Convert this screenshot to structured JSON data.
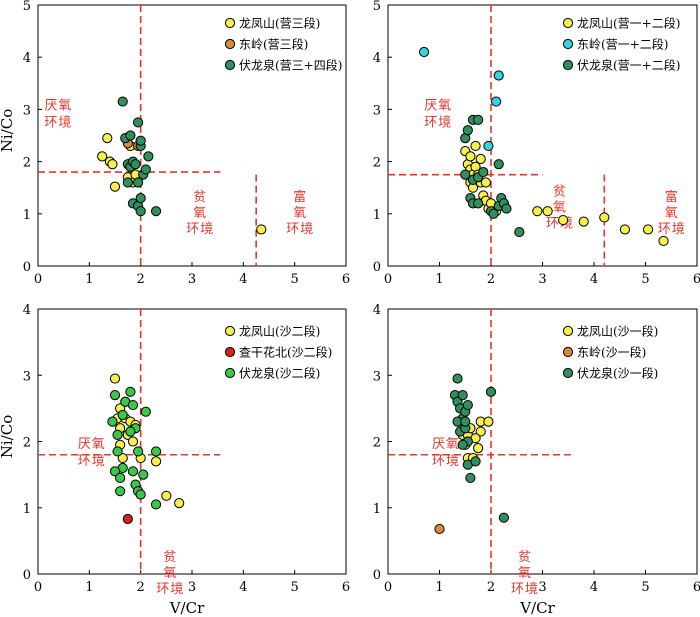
{
  "colors": {
    "longfengshan": "#f7ef4b",
    "dongling": "#d98a3a",
    "fulongquan": "#2f8f5e",
    "fulongquan_light": "#3cc64a",
    "dongling_cyan": "#34d3e0",
    "chaganhuabei": "#d0241c",
    "threshold": "#e8342a"
  },
  "chart_data": [
    {
      "type": "scatter",
      "xlabel": "",
      "ylabel": "Ni/Co",
      "xlim": [
        0,
        6
      ],
      "ylim": [
        0,
        5
      ],
      "xticks": [
        "0",
        "1",
        "2",
        "3",
        "4",
        "5",
        "6"
      ],
      "yticks": [
        "0",
        "1",
        "2",
        "3",
        "4",
        "5"
      ],
      "thresholds": {
        "vlines": [
          2,
          4.25
        ],
        "hline": 1.8
      },
      "zones": [
        {
          "text": [
            "厌",
            "氧",
            "环",
            "境"
          ]
        },
        {
          "text": [
            "贫",
            "氧",
            "环",
            "境"
          ]
        },
        {
          "text": [
            "富",
            "氧",
            "环",
            "境"
          ]
        }
      ],
      "series": [
        {
          "name": "龙凤山(营三段)",
          "color_key": "longfengshan",
          "points": [
            [
              1.25,
              2.1
            ],
            [
              1.35,
              2.45
            ],
            [
              1.4,
              2.0
            ],
            [
              1.45,
              1.95
            ],
            [
              1.5,
              1.52
            ],
            [
              1.75,
              1.7
            ],
            [
              1.85,
              1.6
            ],
            [
              1.8,
              2.3
            ],
            [
              1.9,
              1.75
            ],
            [
              4.35,
              0.7
            ]
          ]
        },
        {
          "name": "东岭(营三段)",
          "color_key": "dongling",
          "points": [
            [
              1.75,
              2.35
            ],
            [
              1.95,
              2.3
            ]
          ]
        },
        {
          "name": "伏龙泉(营三+四段)",
          "color_key": "fulongquan",
          "points": [
            [
              1.65,
              3.15
            ],
            [
              1.7,
              2.45
            ],
            [
              1.8,
              2.5
            ],
            [
              1.75,
              1.95
            ],
            [
              1.8,
              1.9
            ],
            [
              1.85,
              2.0
            ],
            [
              1.9,
              1.95
            ],
            [
              1.95,
              2.75
            ],
            [
              2.0,
              2.3
            ],
            [
              1.95,
              1.6
            ],
            [
              1.85,
              1.2
            ],
            [
              1.95,
              1.15
            ],
            [
              2.0,
              1.05
            ],
            [
              1.75,
              1.6
            ],
            [
              2.05,
              1.75
            ],
            [
              2.0,
              2.4
            ],
            [
              2.15,
              2.1
            ],
            [
              2.1,
              1.85
            ],
            [
              2.0,
              1.3
            ],
            [
              2.3,
              1.05
            ]
          ]
        }
      ]
    },
    {
      "type": "scatter",
      "xlabel": "",
      "ylabel": "",
      "xlim": [
        0,
        6
      ],
      "ylim": [
        0,
        5
      ],
      "xticks": [
        "0",
        "1",
        "2",
        "3",
        "4",
        "5",
        "6"
      ],
      "yticks": [
        "0",
        "1",
        "2",
        "3",
        "4",
        "5"
      ],
      "thresholds": {
        "vlines": [
          2,
          4.2
        ],
        "hline": 1.75
      },
      "zones": [
        {
          "text": [
            "厌",
            "氧",
            "环",
            "境"
          ]
        },
        {
          "text": [
            "贫",
            "氧",
            "环",
            "境"
          ]
        },
        {
          "text": [
            "富",
            "氧",
            "环",
            "境"
          ]
        }
      ],
      "series": [
        {
          "name": "龙凤山(营一+二段)",
          "color_key": "longfengshan",
          "points": [
            [
              1.5,
              2.2
            ],
            [
              1.55,
              1.95
            ],
            [
              1.6,
              2.1
            ],
            [
              1.6,
              1.85
            ],
            [
              1.65,
              1.75
            ],
            [
              1.6,
              1.6
            ],
            [
              1.65,
              1.5
            ],
            [
              1.7,
              2.3
            ],
            [
              1.7,
              1.9
            ],
            [
              1.75,
              1.75
            ],
            [
              1.8,
              2.05
            ],
            [
              1.8,
              1.6
            ],
            [
              1.85,
              1.35
            ],
            [
              1.9,
              1.6
            ],
            [
              1.9,
              1.25
            ],
            [
              1.95,
              1.1
            ],
            [
              2.0,
              1.2
            ],
            [
              2.1,
              1.05
            ],
            [
              2.9,
              1.05
            ],
            [
              3.1,
              1.05
            ],
            [
              3.4,
              0.88
            ],
            [
              3.8,
              0.85
            ],
            [
              4.2,
              0.93
            ],
            [
              4.6,
              0.7
            ],
            [
              5.05,
              0.7
            ],
            [
              5.35,
              0.48
            ]
          ]
        },
        {
          "name": "东岭(营一+二段)",
          "color_key": "dongling_cyan",
          "points": [
            [
              0.7,
              4.1
            ],
            [
              2.15,
              3.65
            ],
            [
              2.1,
              3.15
            ],
            [
              1.95,
              2.3
            ]
          ]
        },
        {
          "name": "伏龙泉(营一+二段)",
          "color_key": "fulongquan",
          "points": [
            [
              1.5,
              2.45
            ],
            [
              1.55,
              2.6
            ],
            [
              1.65,
              2.8
            ],
            [
              1.75,
              2.8
            ],
            [
              1.6,
              1.3
            ],
            [
              1.65,
              1.2
            ],
            [
              1.75,
              1.2
            ],
            [
              1.5,
              1.75
            ],
            [
              1.65,
              1.65
            ],
            [
              1.75,
              1.7
            ],
            [
              1.85,
              1.8
            ],
            [
              2.0,
              1.05
            ],
            [
              2.05,
              1.0
            ],
            [
              2.15,
              1.15
            ],
            [
              2.2,
              1.3
            ],
            [
              2.25,
              1.2
            ],
            [
              2.3,
              1.1
            ],
            [
              2.55,
              0.65
            ],
            [
              2.15,
              1.95
            ]
          ]
        }
      ]
    },
    {
      "type": "scatter",
      "xlabel": "V/Cr",
      "ylabel": "Ni/Co",
      "xlim": [
        0,
        6
      ],
      "ylim": [
        0,
        4
      ],
      "xticks": [
        "0",
        "1",
        "2",
        "3",
        "4",
        "5",
        "6"
      ],
      "yticks": [
        "0",
        "1",
        "2",
        "3",
        "4"
      ],
      "thresholds": {
        "vlines": [
          2
        ],
        "hline": 1.8
      },
      "zones": [
        {
          "text": [
            "厌",
            "氧",
            "环",
            "境"
          ]
        },
        {
          "text": [
            "贫",
            "氧",
            "环",
            "境"
          ]
        }
      ],
      "series": [
        {
          "name": "龙凤山(沙二段)",
          "color_key": "longfengshan",
          "points": [
            [
              1.5,
              2.95
            ],
            [
              1.55,
              2.35
            ],
            [
              1.6,
              2.2
            ],
            [
              1.6,
              1.95
            ],
            [
              1.65,
              1.75
            ],
            [
              1.7,
              2.35
            ],
            [
              1.75,
              2.1
            ],
            [
              1.8,
              2.3
            ],
            [
              1.85,
              2.0
            ],
            [
              1.9,
              2.25
            ],
            [
              2.0,
              1.75
            ],
            [
              2.3,
              1.7
            ],
            [
              2.5,
              1.18
            ],
            [
              2.75,
              1.07
            ],
            [
              1.6,
              2.5
            ]
          ]
        },
        {
          "name": "查干花北(沙二段)",
          "color_key": "chaganhuabei",
          "points": [
            [
              1.75,
              0.83
            ]
          ]
        },
        {
          "name": "伏龙泉(沙二段)",
          "color_key": "fulongquan_light",
          "points": [
            [
              1.5,
              2.7
            ],
            [
              1.45,
              2.3
            ],
            [
              1.55,
              2.1
            ],
            [
              1.65,
              2.4
            ],
            [
              1.7,
              2.6
            ],
            [
              1.8,
              2.75
            ],
            [
              1.85,
              2.55
            ],
            [
              1.9,
              2.2
            ],
            [
              1.55,
              1.85
            ],
            [
              1.65,
              1.6
            ],
            [
              1.5,
              1.55
            ],
            [
              1.6,
              1.45
            ],
            [
              1.6,
              1.25
            ],
            [
              1.85,
              1.55
            ],
            [
              1.9,
              1.35
            ],
            [
              1.95,
              1.25
            ],
            [
              2.0,
              1.2
            ],
            [
              1.95,
              1.85
            ],
            [
              2.05,
              1.5
            ],
            [
              2.1,
              2.45
            ],
            [
              2.3,
              1.85
            ],
            [
              2.3,
              1.05
            ],
            [
              1.8,
              2.15
            ]
          ]
        }
      ]
    },
    {
      "type": "scatter",
      "xlabel": "V/Cr",
      "ylabel": "",
      "xlim": [
        0,
        6
      ],
      "ylim": [
        0,
        4
      ],
      "xticks": [
        "0",
        "1",
        "2",
        "3",
        "4",
        "5",
        "6"
      ],
      "yticks": [
        "0",
        "1",
        "2",
        "3",
        "4"
      ],
      "thresholds": {
        "vlines": [
          2
        ],
        "hline": 1.8
      },
      "zones": [
        {
          "text": [
            "厌",
            "氧",
            "环",
            "境"
          ]
        },
        {
          "text": [
            "贫",
            "氧",
            "环",
            "境"
          ]
        }
      ],
      "series": [
        {
          "name": "龙凤山(沙一段)",
          "color_key": "longfengshan",
          "points": [
            [
              1.45,
              2.1
            ],
            [
              1.5,
              1.95
            ],
            [
              1.55,
              2.1
            ],
            [
              1.6,
              2.2
            ],
            [
              1.55,
              1.75
            ],
            [
              1.65,
              1.75
            ],
            [
              1.75,
              1.9
            ],
            [
              1.8,
              2.3
            ],
            [
              1.8,
              2.15
            ],
            [
              1.95,
              2.3
            ],
            [
              1.7,
              2.05
            ]
          ]
        },
        {
          "name": "东岭(沙一段)",
          "color_key": "dongling",
          "points": [
            [
              1.0,
              0.68
            ]
          ]
        },
        {
          "name": "伏龙泉(沙一段)",
          "color_key": "fulongquan",
          "points": [
            [
              1.35,
              2.95
            ],
            [
              1.3,
              2.7
            ],
            [
              1.35,
              2.6
            ],
            [
              1.45,
              2.7
            ],
            [
              1.4,
              2.5
            ],
            [
              1.45,
              2.35
            ],
            [
              1.5,
              2.45
            ],
            [
              1.55,
              2.55
            ],
            [
              1.35,
              2.3
            ],
            [
              1.4,
              2.15
            ],
            [
              1.5,
              2.2
            ],
            [
              1.55,
              2.0
            ],
            [
              1.45,
              1.95
            ],
            [
              1.6,
              1.45
            ],
            [
              1.55,
              1.65
            ],
            [
              1.7,
              1.7
            ],
            [
              2.0,
              2.75
            ],
            [
              2.25,
              0.85
            ],
            [
              1.5,
              2.3
            ]
          ]
        }
      ]
    }
  ]
}
